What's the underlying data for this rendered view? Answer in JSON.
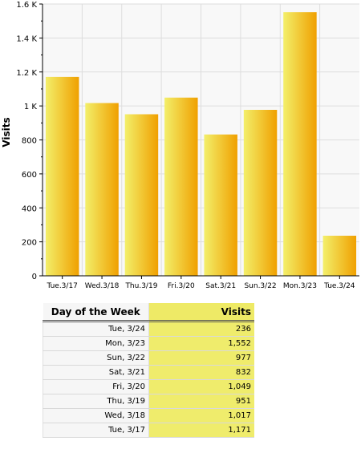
{
  "chart_data": {
    "type": "bar",
    "categories": [
      "Tue.3/17",
      "Wed.3/18",
      "Thu.3/19",
      "Fri.3/20",
      "Sat.3/21",
      "Sun.3/22",
      "Mon.3/23",
      "Tue.3/24"
    ],
    "values": [
      1171,
      1017,
      951,
      1049,
      832,
      977,
      1552,
      236
    ],
    "ylabel": "Visits",
    "ylim": [
      0,
      1600
    ],
    "yticks": [
      0,
      200,
      400,
      600,
      800,
      1000,
      1200,
      1400,
      1600
    ],
    "ytick_labels": [
      "0",
      "200",
      "400",
      "600",
      "800",
      "1 K",
      "1.2 K",
      "1.4 K",
      "1.6 K"
    ],
    "grid": true,
    "bar_colors": {
      "light": "#f3ef6a",
      "dark": "#f0a000"
    }
  },
  "table": {
    "headers": {
      "day": "Day of the Week",
      "visits": "Visits"
    },
    "rows": [
      {
        "day": "Tue, 3/24",
        "visits": "236"
      },
      {
        "day": "Mon, 3/23",
        "visits": "1,552"
      },
      {
        "day": "Sun, 3/22",
        "visits": "977"
      },
      {
        "day": "Sat, 3/21",
        "visits": "832"
      },
      {
        "day": "Fri, 3/20",
        "visits": "1,049"
      },
      {
        "day": "Thu, 3/19",
        "visits": "951"
      },
      {
        "day": "Wed, 3/18",
        "visits": "1,017"
      },
      {
        "day": "Tue, 3/17",
        "visits": "1,171"
      }
    ]
  }
}
